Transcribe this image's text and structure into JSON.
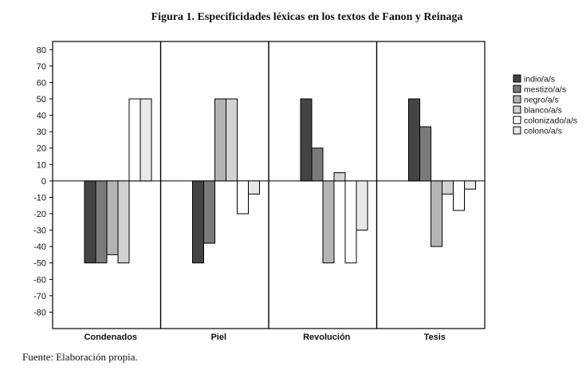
{
  "title": "Figura 1. Especificidades léxicas en los textos de Fanon y Reinaga",
  "source": "Fuente: Elaboración propia.",
  "chart_data": {
    "type": "bar",
    "title": "Figura 1. Especificidades léxicas en los textos de Fanon y Reinaga",
    "xlabel": "",
    "ylabel": "",
    "categories": [
      "Condenados",
      "Piel",
      "Revolución",
      "Tesis"
    ],
    "yticks": [
      "80",
      "70",
      "60",
      "50",
      "40",
      "30",
      "20",
      "10",
      "0",
      "-10",
      "-20",
      "-30",
      "-40",
      "-50",
      "-60",
      "-70",
      "-80"
    ],
    "ylim": [
      -90,
      85
    ],
    "grid": false,
    "legend_position": "right",
    "series": [
      {
        "name": "indio/a/s",
        "color": "#444444",
        "values": [
          -50,
          -50,
          50,
          50
        ]
      },
      {
        "name": "mestizo/a/s",
        "color": "#7a7a7a",
        "values": [
          -50,
          -38,
          20,
          33
        ]
      },
      {
        "name": "negro/a/s",
        "color": "#b4b4b4",
        "values": [
          -45,
          50,
          -50,
          -40
        ]
      },
      {
        "name": "blanco/a/s",
        "color": "#d2d2d2",
        "values": [
          -50,
          50,
          5,
          -8
        ]
      },
      {
        "name": "colonizado/a/s",
        "color": "#ffffff",
        "values": [
          50,
          -20,
          -50,
          -18
        ]
      },
      {
        "name": "colono/a/s",
        "color": "#e8e8e8",
        "values": [
          50,
          -8,
          -30,
          -5
        ]
      }
    ]
  }
}
